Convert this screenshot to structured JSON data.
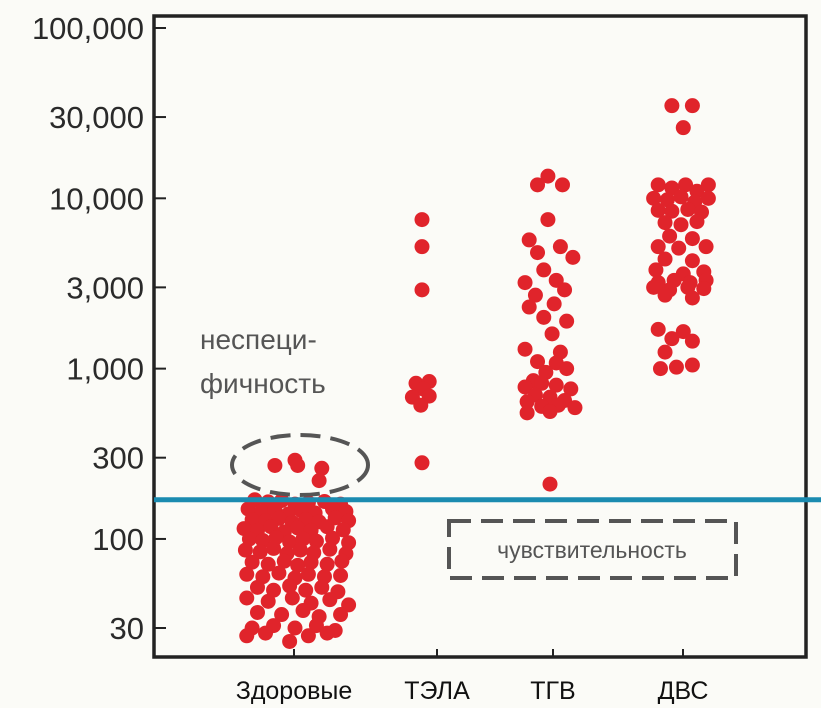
{
  "chart_data": {
    "type": "scatter",
    "title": "",
    "xlabel": "",
    "ylabel": "",
    "y_scale": "log",
    "ylim": [
      20,
      100000
    ],
    "grid": false,
    "y_ticks": [
      {
        "value": 100000,
        "label": "100,000"
      },
      {
        "value": 30000,
        "label": "30,000"
      },
      {
        "value": 10000,
        "label": "10,000"
      },
      {
        "value": 3000,
        "label": "3,000"
      },
      {
        "value": 1000,
        "label": "1,000"
      },
      {
        "value": 300,
        "label": "300"
      },
      {
        "value": 100,
        "label": "100"
      },
      {
        "value": 30,
        "label": "30"
      }
    ],
    "categories": [
      "Здоровые",
      "ТЭЛА",
      "ТГВ",
      "ДВС"
    ],
    "threshold": 170,
    "annotations": {
      "nonspecificity_line1": "неспеци-",
      "nonspecificity_line2": "фичность",
      "sensitivity": "чувствительность"
    },
    "series": [
      {
        "category": "Здоровые",
        "points": [
          {
            "x": 0.35,
            "y": 270
          },
          {
            "x": 0.5,
            "y": 290
          },
          {
            "x": 0.52,
            "y": 270
          },
          {
            "x": 0.7,
            "y": 260
          },
          {
            "x": 0.68,
            "y": 220
          },
          {
            "x": 0.2,
            "y": 170
          },
          {
            "x": 0.3,
            "y": 165
          },
          {
            "x": 0.4,
            "y": 168
          },
          {
            "x": 0.5,
            "y": 160
          },
          {
            "x": 0.6,
            "y": 163
          },
          {
            "x": 0.72,
            "y": 166
          },
          {
            "x": 0.84,
            "y": 160
          },
          {
            "x": 0.15,
            "y": 150
          },
          {
            "x": 0.25,
            "y": 145
          },
          {
            "x": 0.35,
            "y": 148
          },
          {
            "x": 0.45,
            "y": 140
          },
          {
            "x": 0.55,
            "y": 146
          },
          {
            "x": 0.65,
            "y": 142
          },
          {
            "x": 0.78,
            "y": 150
          },
          {
            "x": 0.88,
            "y": 145
          },
          {
            "x": 0.18,
            "y": 130
          },
          {
            "x": 0.28,
            "y": 128
          },
          {
            "x": 0.38,
            "y": 132
          },
          {
            "x": 0.48,
            "y": 125
          },
          {
            "x": 0.58,
            "y": 130
          },
          {
            "x": 0.68,
            "y": 126
          },
          {
            "x": 0.8,
            "y": 133
          },
          {
            "x": 0.9,
            "y": 128
          },
          {
            "x": 0.12,
            "y": 115
          },
          {
            "x": 0.22,
            "y": 112
          },
          {
            "x": 0.32,
            "y": 118
          },
          {
            "x": 0.42,
            "y": 110
          },
          {
            "x": 0.52,
            "y": 116
          },
          {
            "x": 0.62,
            "y": 112
          },
          {
            "x": 0.74,
            "y": 118
          },
          {
            "x": 0.86,
            "y": 113
          },
          {
            "x": 0.16,
            "y": 100
          },
          {
            "x": 0.26,
            "y": 98
          },
          {
            "x": 0.36,
            "y": 102
          },
          {
            "x": 0.46,
            "y": 96
          },
          {
            "x": 0.56,
            "y": 100
          },
          {
            "x": 0.66,
            "y": 97
          },
          {
            "x": 0.78,
            "y": 101
          },
          {
            "x": 0.9,
            "y": 95
          },
          {
            "x": 0.13,
            "y": 86
          },
          {
            "x": 0.24,
            "y": 84
          },
          {
            "x": 0.34,
            "y": 88
          },
          {
            "x": 0.44,
            "y": 82
          },
          {
            "x": 0.54,
            "y": 86
          },
          {
            "x": 0.64,
            "y": 83
          },
          {
            "x": 0.76,
            "y": 87
          },
          {
            "x": 0.88,
            "y": 82
          },
          {
            "x": 0.18,
            "y": 73
          },
          {
            "x": 0.3,
            "y": 71
          },
          {
            "x": 0.42,
            "y": 74
          },
          {
            "x": 0.52,
            "y": 70
          },
          {
            "x": 0.62,
            "y": 73
          },
          {
            "x": 0.74,
            "y": 71
          },
          {
            "x": 0.85,
            "y": 74
          },
          {
            "x": 0.14,
            "y": 62
          },
          {
            "x": 0.26,
            "y": 60
          },
          {
            "x": 0.38,
            "y": 63
          },
          {
            "x": 0.5,
            "y": 59
          },
          {
            "x": 0.6,
            "y": 62
          },
          {
            "x": 0.72,
            "y": 60
          },
          {
            "x": 0.84,
            "y": 61
          },
          {
            "x": 0.22,
            "y": 52
          },
          {
            "x": 0.34,
            "y": 50
          },
          {
            "x": 0.46,
            "y": 53
          },
          {
            "x": 0.58,
            "y": 50
          },
          {
            "x": 0.7,
            "y": 52
          },
          {
            "x": 0.82,
            "y": 49
          },
          {
            "x": 0.14,
            "y": 45
          },
          {
            "x": 0.3,
            "y": 43
          },
          {
            "x": 0.48,
            "y": 45
          },
          {
            "x": 0.62,
            "y": 42
          },
          {
            "x": 0.76,
            "y": 44
          },
          {
            "x": 0.9,
            "y": 41
          },
          {
            "x": 0.22,
            "y": 37
          },
          {
            "x": 0.4,
            "y": 36
          },
          {
            "x": 0.56,
            "y": 38
          },
          {
            "x": 0.68,
            "y": 35
          },
          {
            "x": 0.84,
            "y": 36
          },
          {
            "x": 0.18,
            "y": 30
          },
          {
            "x": 0.34,
            "y": 31
          },
          {
            "x": 0.5,
            "y": 30
          },
          {
            "x": 0.66,
            "y": 31
          },
          {
            "x": 0.8,
            "y": 29
          },
          {
            "x": 0.14,
            "y": 27
          },
          {
            "x": 0.28,
            "y": 28
          },
          {
            "x": 0.6,
            "y": 27
          },
          {
            "x": 0.74,
            "y": 28
          },
          {
            "x": 0.46,
            "y": 25
          }
        ]
      },
      {
        "category": "ТЭЛА",
        "points": [
          {
            "x": 0.5,
            "y": 7500
          },
          {
            "x": 0.5,
            "y": 5200
          },
          {
            "x": 0.5,
            "y": 2900
          },
          {
            "x": 0.4,
            "y": 820
          },
          {
            "x": 0.62,
            "y": 840
          },
          {
            "x": 0.52,
            "y": 760
          },
          {
            "x": 0.34,
            "y": 680
          },
          {
            "x": 0.62,
            "y": 690
          },
          {
            "x": 0.48,
            "y": 610
          },
          {
            "x": 0.5,
            "y": 280
          }
        ]
      },
      {
        "category": "ТГВ",
        "points": [
          {
            "x": 0.48,
            "y": 13500
          },
          {
            "x": 0.38,
            "y": 12000
          },
          {
            "x": 0.62,
            "y": 12000
          },
          {
            "x": 0.48,
            "y": 7500
          },
          {
            "x": 0.3,
            "y": 5700
          },
          {
            "x": 0.6,
            "y": 5200
          },
          {
            "x": 0.38,
            "y": 4800
          },
          {
            "x": 0.72,
            "y": 4500
          },
          {
            "x": 0.44,
            "y": 3800
          },
          {
            "x": 0.56,
            "y": 3300
          },
          {
            "x": 0.26,
            "y": 3200
          },
          {
            "x": 0.36,
            "y": 2700
          },
          {
            "x": 0.64,
            "y": 2900
          },
          {
            "x": 0.54,
            "y": 2400
          },
          {
            "x": 0.3,
            "y": 2300
          },
          {
            "x": 0.44,
            "y": 2000
          },
          {
            "x": 0.66,
            "y": 1900
          },
          {
            "x": 0.52,
            "y": 1600
          },
          {
            "x": 0.26,
            "y": 1300
          },
          {
            "x": 0.6,
            "y": 1250
          },
          {
            "x": 0.38,
            "y": 1100
          },
          {
            "x": 0.56,
            "y": 1080
          },
          {
            "x": 0.46,
            "y": 950
          },
          {
            "x": 0.66,
            "y": 1000
          },
          {
            "x": 0.34,
            "y": 850
          },
          {
            "x": 0.42,
            "y": 820
          },
          {
            "x": 0.56,
            "y": 800
          },
          {
            "x": 0.26,
            "y": 780
          },
          {
            "x": 0.7,
            "y": 760
          },
          {
            "x": 0.36,
            "y": 700
          },
          {
            "x": 0.5,
            "y": 680
          },
          {
            "x": 0.64,
            "y": 650
          },
          {
            "x": 0.28,
            "y": 640
          },
          {
            "x": 0.42,
            "y": 600
          },
          {
            "x": 0.58,
            "y": 610
          },
          {
            "x": 0.74,
            "y": 590
          },
          {
            "x": 0.28,
            "y": 550
          },
          {
            "x": 0.5,
            "y": 560
          },
          {
            "x": 0.5,
            "y": 210
          }
        ]
      },
      {
        "category": "ДВС",
        "points": [
          {
            "x": 0.42,
            "y": 35000
          },
          {
            "x": 0.6,
            "y": 35000
          },
          {
            "x": 0.52,
            "y": 26000
          },
          {
            "x": 0.3,
            "y": 12000
          },
          {
            "x": 0.42,
            "y": 11500
          },
          {
            "x": 0.54,
            "y": 12000
          },
          {
            "x": 0.64,
            "y": 11000
          },
          {
            "x": 0.74,
            "y": 12000
          },
          {
            "x": 0.26,
            "y": 10000
          },
          {
            "x": 0.38,
            "y": 9800
          },
          {
            "x": 0.5,
            "y": 10200
          },
          {
            "x": 0.62,
            "y": 9500
          },
          {
            "x": 0.74,
            "y": 10000
          },
          {
            "x": 0.3,
            "y": 8500
          },
          {
            "x": 0.42,
            "y": 8400
          },
          {
            "x": 0.56,
            "y": 8600
          },
          {
            "x": 0.68,
            "y": 8300
          },
          {
            "x": 0.36,
            "y": 7200
          },
          {
            "x": 0.5,
            "y": 7000
          },
          {
            "x": 0.64,
            "y": 7300
          },
          {
            "x": 0.4,
            "y": 6000
          },
          {
            "x": 0.6,
            "y": 5800
          },
          {
            "x": 0.3,
            "y": 5200
          },
          {
            "x": 0.48,
            "y": 5100
          },
          {
            "x": 0.72,
            "y": 5200
          },
          {
            "x": 0.36,
            "y": 4400
          },
          {
            "x": 0.6,
            "y": 4300
          },
          {
            "x": 0.28,
            "y": 3800
          },
          {
            "x": 0.52,
            "y": 3600
          },
          {
            "x": 0.7,
            "y": 3700
          },
          {
            "x": 0.3,
            "y": 3200
          },
          {
            "x": 0.44,
            "y": 3300
          },
          {
            "x": 0.58,
            "y": 3200
          },
          {
            "x": 0.72,
            "y": 3300
          },
          {
            "x": 0.26,
            "y": 3000
          },
          {
            "x": 0.4,
            "y": 2900
          },
          {
            "x": 0.56,
            "y": 3000
          },
          {
            "x": 0.7,
            "y": 2950
          },
          {
            "x": 0.36,
            "y": 2700
          },
          {
            "x": 0.6,
            "y": 2600
          },
          {
            "x": 0.3,
            "y": 1700
          },
          {
            "x": 0.52,
            "y": 1650
          },
          {
            "x": 0.42,
            "y": 1500
          },
          {
            "x": 0.6,
            "y": 1450
          },
          {
            "x": 0.36,
            "y": 1250
          },
          {
            "x": 0.32,
            "y": 1000
          },
          {
            "x": 0.46,
            "y": 1020
          },
          {
            "x": 0.6,
            "y": 1050
          }
        ]
      }
    ],
    "colors": {
      "point": "#e0242b",
      "threshold_line": "#1b8bb0",
      "axis": "#222222",
      "dashed": "#555555"
    }
  }
}
